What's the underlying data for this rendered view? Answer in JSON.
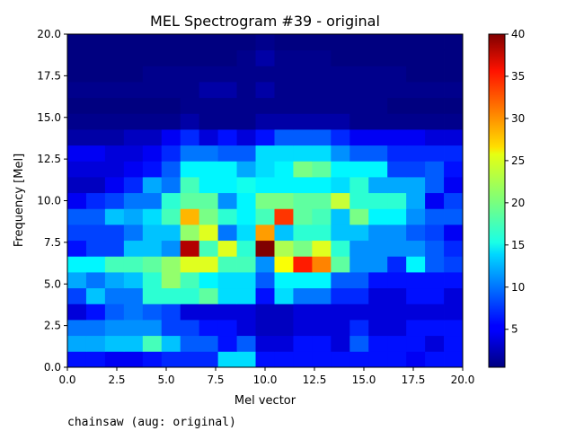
{
  "chart_data": {
    "type": "heatmap",
    "title": "MEL Spectrogram #39 - original",
    "xlabel": "Mel vector",
    "ylabel": "Frequency [Mel]",
    "xlim": [
      0,
      20
    ],
    "ylim": [
      0,
      20
    ],
    "xticks": [
      "0.0",
      "2.5",
      "5.0",
      "7.5",
      "10.0",
      "12.5",
      "15.0",
      "17.5",
      "20.0"
    ],
    "yticks": [
      "0.0",
      "2.5",
      "5.0",
      "7.5",
      "10.0",
      "12.5",
      "15.0",
      "17.5",
      "20.0"
    ],
    "colormap": "jet",
    "colorbar": {
      "range": [
        0.5,
        40
      ],
      "ticks": [
        "5",
        "10",
        "15",
        "20",
        "25",
        "30",
        "35",
        "40"
      ]
    },
    "rows_bottom_to_top": [
      [
        6,
        6,
        5,
        5,
        6,
        7,
        7,
        7,
        14,
        14,
        6,
        6,
        6,
        6,
        6,
        6,
        6,
        6,
        5,
        6,
        6
      ],
      [
        12,
        12,
        13,
        13,
        18,
        13,
        9,
        9,
        6,
        9,
        4,
        4,
        6,
        6,
        4,
        9,
        6,
        6,
        6,
        4,
        6
      ],
      [
        10,
        10,
        11,
        11,
        11,
        8,
        8,
        6,
        6,
        4,
        3,
        3,
        4,
        4,
        4,
        7,
        4,
        4,
        6,
        6,
        6
      ],
      [
        4,
        6,
        9,
        10,
        9,
        8,
        4,
        4,
        4,
        4,
        3,
        3,
        4,
        4,
        4,
        4,
        4,
        4,
        4,
        4,
        4
      ],
      [
        8,
        13,
        10,
        10,
        17,
        17,
        17,
        19,
        14,
        14,
        6,
        14,
        10,
        10,
        7,
        7,
        4,
        4,
        6,
        6,
        4
      ],
      [
        12,
        10,
        12,
        13,
        17,
        21,
        18,
        15,
        14,
        14,
        9,
        15,
        15,
        15,
        9,
        9,
        6,
        6,
        6,
        6,
        6
      ],
      [
        15,
        15,
        18,
        18,
        19,
        21,
        24,
        24,
        18,
        18,
        11,
        25,
        34,
        30,
        19,
        11,
        11,
        7,
        15,
        9,
        8
      ],
      [
        6,
        8,
        8,
        13,
        13,
        11,
        38,
        18,
        24,
        17,
        40,
        22,
        20,
        24,
        17,
        11,
        11,
        11,
        11,
        9,
        7
      ],
      [
        8,
        8,
        8,
        10,
        13,
        13,
        21,
        24,
        10,
        14,
        29,
        13,
        17,
        17,
        13,
        13,
        11,
        11,
        9,
        8,
        5
      ],
      [
        9,
        9,
        13,
        12,
        14,
        18,
        28,
        20,
        17,
        15,
        18,
        33,
        19,
        18,
        13,
        20,
        15,
        15,
        11,
        9,
        9
      ],
      [
        5,
        7,
        8,
        10,
        10,
        17,
        19,
        19,
        11,
        15,
        20,
        20,
        19,
        19,
        23,
        17,
        17,
        17,
        12,
        5,
        8
      ],
      [
        3,
        3,
        5,
        7,
        12,
        10,
        18,
        15,
        15,
        16,
        15,
        15,
        15,
        15,
        14,
        17,
        12,
        12,
        12,
        9,
        5
      ],
      [
        4,
        4,
        4,
        5,
        6,
        9,
        15,
        15,
        15,
        12,
        14,
        15,
        20,
        19,
        15,
        15,
        15,
        8,
        8,
        9,
        6
      ],
      [
        5,
        5,
        4,
        4,
        5,
        7,
        10,
        10,
        9,
        9,
        14,
        14,
        14,
        14,
        11,
        9,
        9,
        7,
        7,
        7,
        7
      ],
      [
        2,
        2,
        2,
        3,
        3,
        5,
        7,
        4,
        6,
        4,
        6,
        9,
        9,
        9,
        7,
        5,
        5,
        5,
        5,
        4,
        4
      ],
      [
        1,
        1,
        1,
        1,
        1,
        1,
        2,
        1,
        1,
        1,
        2,
        2,
        2,
        2,
        2,
        1,
        1,
        1,
        1,
        1,
        1
      ],
      [
        0.5,
        0.5,
        0.5,
        0.5,
        0.5,
        0.5,
        1,
        1,
        1,
        1,
        1,
        1,
        1,
        1,
        1,
        1,
        1,
        0.5,
        0.5,
        0.5,
        0.5
      ],
      [
        1,
        1,
        1,
        1,
        1,
        1,
        1,
        2,
        2,
        1,
        2,
        1,
        1,
        1,
        1,
        1,
        1,
        1,
        1,
        1,
        1
      ],
      [
        0.5,
        0.5,
        0.5,
        0.5,
        1,
        1,
        1,
        1,
        1,
        1,
        1,
        1,
        1,
        1,
        1,
        1,
        1,
        1,
        0.5,
        0.5,
        0.5
      ],
      [
        0.5,
        0.5,
        0.5,
        0.5,
        0.5,
        0.5,
        0.5,
        0.5,
        0.5,
        1,
        2,
        1,
        1,
        1,
        0.5,
        0.5,
        0.5,
        0.5,
        0.5,
        0.5,
        0.5
      ],
      [
        0.5,
        0.5,
        0.5,
        0.5,
        0.5,
        0.5,
        0.5,
        0.5,
        0.5,
        0.5,
        1,
        0.5,
        0.5,
        0.5,
        0.5,
        0.5,
        0.5,
        0.5,
        0.5,
        0.5,
        0.5
      ]
    ]
  },
  "caption": "chainsaw (aug: original)"
}
